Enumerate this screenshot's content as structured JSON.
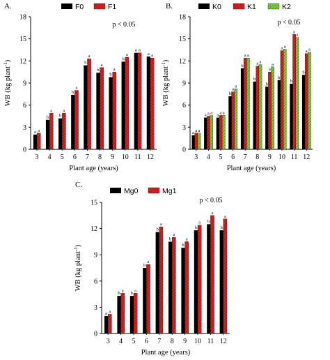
{
  "colors": {
    "black": "#000000",
    "red": "#e02020",
    "green": "#7ed03a"
  },
  "chart_data": [
    {
      "panel_label": "A.",
      "type": "bar",
      "categories": [
        "3",
        "4",
        "5",
        "6",
        "7",
        "8",
        "9",
        "10",
        "11",
        "12"
      ],
      "xlabel": "Plant age (years)",
      "ylabel": "WB (kg plant",
      "ylabel_sup": "-1",
      "ylabel_close": ")",
      "ylim": [
        0,
        18
      ],
      "yticks": [
        0,
        3,
        6,
        9,
        12,
        15,
        18
      ],
      "annotation": "p < 0.05",
      "legend_position": "top",
      "series": [
        {
          "name": "F0",
          "pattern": "black",
          "values": [
            2.0,
            4.0,
            4.2,
            7.4,
            11.4,
            10.4,
            9.8,
            11.9,
            13.1,
            12.6
          ],
          "letters": [
            "a",
            "b",
            "b",
            "b",
            "b",
            "b",
            "b",
            "b",
            "a",
            "a"
          ]
        },
        {
          "name": "F1",
          "pattern": "red",
          "values": [
            2.2,
            4.9,
            4.9,
            8.0,
            12.3,
            11.1,
            10.5,
            12.5,
            13.1,
            12.4
          ],
          "letters": [
            "a",
            "a",
            "a",
            "a",
            "a",
            "a",
            "a",
            "a",
            "a",
            "a"
          ]
        }
      ]
    },
    {
      "panel_label": "B.",
      "type": "bar",
      "categories": [
        "3",
        "4",
        "5",
        "6",
        "7",
        "8",
        "9",
        "10",
        "11",
        "12"
      ],
      "xlabel": "Plant age (years)",
      "ylabel": "WB (kg plant",
      "ylabel_sup": "-1",
      "ylabel_close": ")",
      "ylim": [
        0,
        18
      ],
      "yticks": [
        0,
        3,
        6,
        9,
        12,
        15,
        18
      ],
      "annotation": "p < 0.05",
      "legend_position": "top",
      "series": [
        {
          "name": "K0",
          "pattern": "black",
          "values": [
            1.9,
            4.3,
            4.3,
            7.2,
            11.0,
            9.2,
            8.5,
            9.4,
            8.9,
            10.1
          ],
          "letters": [
            "a",
            "a",
            "a",
            "b",
            "b",
            "b",
            "b",
            "b",
            "b",
            "b"
          ]
        },
        {
          "name": "K1",
          "pattern": "red",
          "values": [
            2.2,
            4.5,
            4.6,
            7.8,
            12.4,
            11.3,
            10.5,
            13.4,
            15.6,
            13.0
          ],
          "letters": [
            "a",
            "a",
            "a",
            "a",
            "a",
            "a",
            "a",
            "a",
            "a",
            "a"
          ]
        },
        {
          "name": "K2",
          "pattern": "green",
          "values": [
            2.2,
            4.6,
            4.6,
            8.2,
            12.4,
            11.5,
            11.2,
            13.6,
            15.2,
            13.2
          ],
          "letters": [
            "a",
            "a",
            "a",
            "a",
            "a",
            "a",
            "a",
            "a",
            "a",
            "a"
          ]
        }
      ]
    },
    {
      "panel_label": "C.",
      "type": "bar",
      "categories": [
        "3",
        "4",
        "5",
        "6",
        "7",
        "8",
        "9",
        "10",
        "11",
        "12"
      ],
      "xlabel": "Plant age (years)",
      "ylabel": "WB (kg plant",
      "ylabel_sup": "-1",
      "ylabel_close": ")",
      "ylim": [
        0,
        15
      ],
      "yticks": [
        0,
        3,
        6,
        9,
        12,
        15
      ],
      "annotation": "p < 0.05",
      "legend_position": "top",
      "series": [
        {
          "name": "Mg0",
          "pattern": "black",
          "values": [
            2.0,
            4.3,
            4.3,
            7.5,
            11.6,
            10.5,
            9.8,
            11.8,
            12.5,
            11.8
          ],
          "letters": [
            "a",
            "b",
            "b",
            "b",
            "b",
            "b",
            "b",
            "b",
            "b",
            "b"
          ]
        },
        {
          "name": "Mg1",
          "pattern": "red",
          "values": [
            2.2,
            4.6,
            4.6,
            7.9,
            12.2,
            11.0,
            10.5,
            12.4,
            13.5,
            13.1
          ],
          "letters": [
            "a",
            "a",
            "a",
            "a",
            "a",
            "a",
            "a",
            "a",
            "a",
            "a"
          ]
        }
      ]
    }
  ]
}
